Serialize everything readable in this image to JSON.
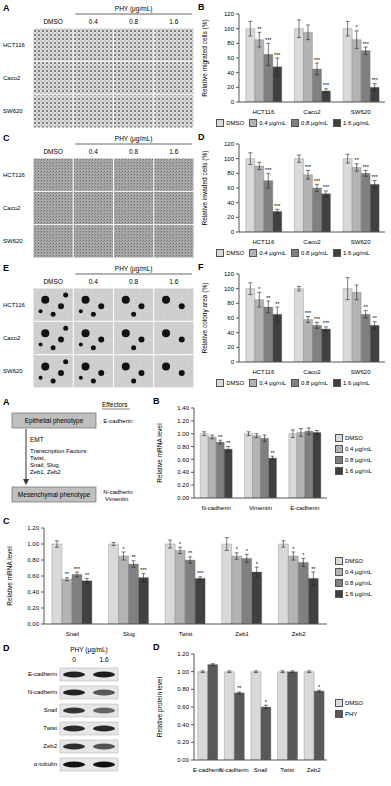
{
  "image_panels": [
    {
      "panel": "A",
      "control": "DMSO",
      "treatment": "PHY (μg/mL)",
      "doses": [
        "0.4",
        "0.8",
        "1.6"
      ],
      "cell_lines": [
        "HCT116",
        "Caco2",
        "SW620"
      ]
    },
    {
      "panel": "C",
      "control": "DMSO",
      "treatment": "PHY (μg/mL)",
      "doses": [
        "0.4",
        "0.8",
        "1.6"
      ],
      "cell_lines": [
        "HCT116",
        "Caco2",
        "SW620"
      ]
    },
    {
      "panel": "E",
      "control": "DMSO",
      "treatment": "PHY (μg/mL)",
      "doses": [
        "0.4",
        "0.8",
        "1.6"
      ],
      "cell_lines": [
        "HCT116",
        "Caco2",
        "SW620"
      ]
    }
  ],
  "diagram": {
    "panel": "A",
    "effectors_title": "Effectors",
    "epithelial": "Epithelial phenotype",
    "epithelial_effectors": [
      ": E-cadherin"
    ],
    "arrow_label": "EMT",
    "transcription_factors": [
      "Transcription Factors:",
      "Twist,",
      "Snail, Slug,",
      "Zeb1, Zeb2"
    ],
    "mesenchymal": "Mesenchymal phenotype",
    "mesenchymal_effectors": [
      ": N-cadherin",
      "Vimentin"
    ]
  },
  "blot": {
    "panel": "D",
    "treatment": "PHY (μg/mL)",
    "lanes": [
      "0",
      "1.6"
    ],
    "proteins": [
      "E-cadherin",
      "N-cadherin",
      "Snail",
      "Twist",
      "Zeb2",
      "α-tubulin"
    ]
  },
  "chart_data": [
    {
      "panel": "B",
      "type": "bar",
      "y_label": "Relative migrated cells (%)",
      "categories": [
        "HCT116",
        "Caco2",
        "SW620"
      ],
      "ylim": [
        0,
        120
      ],
      "yticks": [
        0,
        20,
        40,
        60,
        80,
        100,
        120
      ],
      "grid": false,
      "legend": "bottom",
      "series": [
        {
          "name": "DMSO",
          "color": "#d9d9d9",
          "values": [
            100,
            100,
            100
          ],
          "errors": [
            10,
            12,
            10
          ],
          "annotations": [
            null,
            null,
            null
          ]
        },
        {
          "name": "0.4 μg/mL",
          "color": "#b3b3b3",
          "values": [
            85,
            95,
            85
          ],
          "errors": [
            10,
            10,
            12
          ],
          "annotations": [
            "**",
            null,
            "*"
          ]
        },
        {
          "name": "0.8 μg/mL",
          "color": "#808080",
          "values": [
            65,
            45,
            70
          ],
          "errors": [
            15,
            8,
            5
          ],
          "annotations": [
            "***",
            "***",
            "***"
          ]
        },
        {
          "name": "1.6 μg/mL",
          "color": "#404040",
          "values": [
            48,
            15,
            20
          ],
          "errors": [
            12,
            3,
            5
          ],
          "annotations": [
            "***",
            "***",
            "***"
          ]
        }
      ]
    },
    {
      "panel": "D",
      "type": "bar",
      "y_label": "Relative invaded cells (%)",
      "categories": [
        "HCT116",
        "Caco2",
        "SW620"
      ],
      "ylim": [
        0,
        120
      ],
      "yticks": [
        0,
        20,
        40,
        60,
        80,
        100,
        120
      ],
      "grid": false,
      "legend": "bottom",
      "series": [
        {
          "name": "DMSO",
          "color": "#d9d9d9",
          "values": [
            100,
            100,
            100
          ],
          "errors": [
            8,
            5,
            6
          ],
          "annotations": [
            null,
            null,
            null
          ]
        },
        {
          "name": "0.4 μg/mL",
          "color": "#b3b3b3",
          "values": [
            90,
            78,
            88
          ],
          "errors": [
            5,
            6,
            5
          ],
          "annotations": [
            null,
            "***",
            "**"
          ]
        },
        {
          "name": "0.8 μg/mL",
          "color": "#808080",
          "values": [
            70,
            60,
            80
          ],
          "errors": [
            10,
            5,
            4
          ],
          "annotations": [
            "***",
            "***",
            "***"
          ]
        },
        {
          "name": "1.6 μg/mL",
          "color": "#404040",
          "values": [
            28,
            52,
            65
          ],
          "errors": [
            3,
            4,
            5
          ],
          "annotations": [
            "***",
            "***",
            "***"
          ]
        }
      ]
    },
    {
      "panel": "F",
      "type": "bar",
      "y_label": "Relative colony area (%)",
      "categories": [
        "HCT116",
        "Caco2",
        "SW620"
      ],
      "ylim": [
        0,
        120
      ],
      "yticks": [
        0,
        20,
        40,
        60,
        80,
        100,
        120
      ],
      "grid": false,
      "legend": "bottom",
      "series": [
        {
          "name": "DMSO",
          "color": "#d9d9d9",
          "values": [
            100,
            100,
            100
          ],
          "errors": [
            8,
            3,
            15
          ],
          "annotations": [
            null,
            null,
            null
          ]
        },
        {
          "name": "0.4 μg/mL",
          "color": "#b3b3b3",
          "values": [
            85,
            58,
            95
          ],
          "errors": [
            10,
            4,
            10
          ],
          "annotations": [
            "*",
            "***",
            null
          ]
        },
        {
          "name": "0.8 μg/mL",
          "color": "#808080",
          "values": [
            75,
            50,
            65
          ],
          "errors": [
            8,
            4,
            5
          ],
          "annotations": [
            "**",
            "***",
            "**"
          ]
        },
        {
          "name": "1.6 μg/mL",
          "color": "#404040",
          "values": [
            65,
            45,
            50
          ],
          "errors": [
            10,
            3,
            5
          ],
          "annotations": [
            "**",
            "***",
            "**"
          ]
        }
      ]
    },
    {
      "panel": "B",
      "type": "bar",
      "y_label": "Relative mRNA level",
      "categories": [
        "N-cadherin",
        "Vimentin",
        "E-cadherin"
      ],
      "ylim": [
        0,
        1.4
      ],
      "yticks": [
        {
          "value": 0,
          "label": "0.00"
        },
        {
          "value": 0.2,
          "label": "0.20"
        },
        {
          "value": 0.4,
          "label": "0.40"
        },
        {
          "value": 0.6,
          "label": "0.60"
        },
        {
          "value": 0.8,
          "label": "0.80"
        },
        {
          "value": 1.0,
          "label": "1.00"
        },
        {
          "value": 1.2,
          "label": "1.20"
        },
        {
          "value": 1.4,
          "label": "1.40"
        }
      ],
      "grid": false,
      "legend": "right",
      "series": [
        {
          "name": "DMSO",
          "color": "#d9d9d9",
          "values": [
            1.0,
            1.0,
            1.0
          ],
          "errors": [
            0.03,
            0.03,
            0.06
          ],
          "annotations": [
            null,
            null,
            null
          ]
        },
        {
          "name": "0.4 μg/mL",
          "color": "#b3b3b3",
          "values": [
            0.95,
            0.97,
            1.02
          ],
          "errors": [
            0.03,
            0.03,
            0.06
          ],
          "annotations": [
            null,
            null,
            null
          ]
        },
        {
          "name": "0.8 μg/mL",
          "color": "#808080",
          "values": [
            0.87,
            0.93,
            1.04
          ],
          "errors": [
            0.03,
            0.05,
            0.05
          ],
          "annotations": [
            "**",
            null,
            null
          ]
        },
        {
          "name": "1.6 μg/mL",
          "color": "#404040",
          "values": [
            0.76,
            0.62,
            1.02
          ],
          "errors": [
            0.04,
            0.03,
            0.03
          ],
          "annotations": [
            "**",
            "**",
            null
          ]
        }
      ]
    },
    {
      "panel": "C",
      "type": "bar",
      "y_label": "Relative mRNA level",
      "categories": [
        "Snail",
        "Slug",
        "Twist",
        "Zeb1",
        "Zeb2"
      ],
      "ylim": [
        0,
        1.2
      ],
      "yticks": [
        {
          "value": 0,
          "label": "0.00"
        },
        {
          "value": 0.2,
          "label": "0.20"
        },
        {
          "value": 0.4,
          "label": "0.40"
        },
        {
          "value": 0.6,
          "label": "0.60"
        },
        {
          "value": 0.8,
          "label": "0.80"
        },
        {
          "value": 1.0,
          "label": "1.00"
        },
        {
          "value": 1.2,
          "label": "1.20"
        }
      ],
      "grid": false,
      "legend": "right",
      "series": [
        {
          "name": "DMSO",
          "color": "#d9d9d9",
          "values": [
            1.0,
            1.0,
            1.0,
            1.0,
            1.0
          ],
          "errors": [
            0.04,
            0.02,
            0.05,
            0.08,
            0.04
          ],
          "annotations": [
            null,
            null,
            null,
            null,
            null
          ]
        },
        {
          "name": "0.4 μg/mL",
          "color": "#b3b3b3",
          "values": [
            0.56,
            0.85,
            0.92,
            0.85,
            0.85
          ],
          "errors": [
            0.02,
            0.05,
            0.04,
            0.04,
            0.05
          ],
          "annotations": [
            "**",
            "*",
            "*",
            "*",
            "*"
          ]
        },
        {
          "name": "0.8 μg/mL",
          "color": "#808080",
          "values": [
            0.62,
            0.75,
            0.8,
            0.82,
            0.77
          ],
          "errors": [
            0.03,
            0.04,
            0.04,
            0.05,
            0.05
          ],
          "annotations": [
            "***",
            "**",
            "**",
            "*",
            "*"
          ]
        },
        {
          "name": "1.6 μg/mL",
          "color": "#404040",
          "values": [
            0.54,
            0.58,
            0.57,
            0.65,
            0.57
          ],
          "errors": [
            0.03,
            0.05,
            0.02,
            0.06,
            0.08
          ],
          "annotations": [
            "**",
            "***",
            "***",
            "*",
            "**"
          ]
        }
      ]
    },
    {
      "panel": "D",
      "type": "bar",
      "y_label": "Relative protein level",
      "categories": [
        "E-cadherin",
        "N-cadherin",
        "Snail",
        "Twist",
        "Zeb2"
      ],
      "ylim": [
        0,
        1.2
      ],
      "yticks": [
        {
          "value": 0,
          "label": "0.00"
        },
        {
          "value": 0.2,
          "label": "0.20"
        },
        {
          "value": 0.4,
          "label": "0.40"
        },
        {
          "value": 0.6,
          "label": "0.60"
        },
        {
          "value": 0.8,
          "label": "0.80"
        },
        {
          "value": 1.0,
          "label": "1.00"
        },
        {
          "value": 1.2,
          "label": "1.20"
        }
      ],
      "grid": false,
      "legend": "right",
      "series": [
        {
          "name": "DMSO",
          "color": "#d9d9d9",
          "values": [
            1.0,
            1.0,
            1.0,
            1.0,
            1.0
          ],
          "errors": [
            0.01,
            0.01,
            0.01,
            0.01,
            0.01
          ],
          "annotations": [
            null,
            null,
            null,
            null,
            null
          ]
        },
        {
          "name": "PHY",
          "color": "#595959",
          "values": [
            1.08,
            0.76,
            0.6,
            1.0,
            0.78
          ],
          "errors": [
            0.01,
            0.01,
            0.02,
            0.01,
            0.01
          ],
          "annotations": [
            null,
            "**",
            "*",
            null,
            "*"
          ]
        }
      ]
    }
  ]
}
